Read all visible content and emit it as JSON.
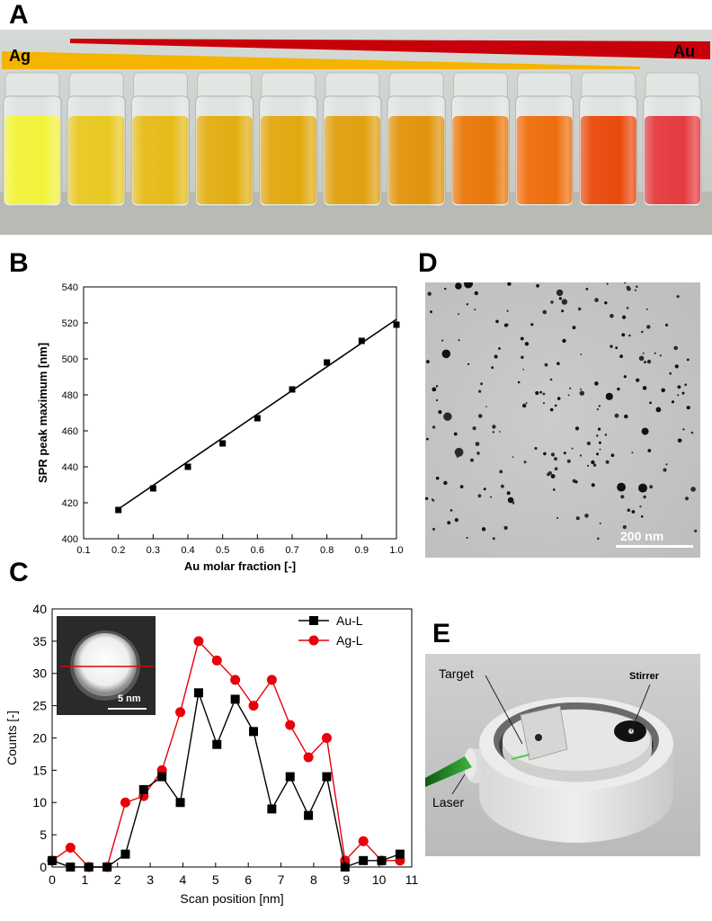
{
  "panels": {
    "a": {
      "letter": "A",
      "label_ag": "Ag",
      "label_au": "Au",
      "vial_count": 11,
      "vial_colors": [
        "#f2f23a",
        "#e9c820",
        "#e6bb18",
        "#e2ae12",
        "#e2a80f",
        "#e0a010",
        "#e1940c",
        "#e9780a",
        "#ee6e0e",
        "#ea4a0c",
        "#e43a3e"
      ]
    },
    "b": {
      "letter": "B"
    },
    "c": {
      "letter": "C",
      "inset_scale": "5 nm"
    },
    "d": {
      "letter": "D",
      "scale_bar": "200 nm"
    },
    "e": {
      "letter": "E",
      "labels": {
        "target": "Target",
        "stirrer": "Stirrer",
        "laser": "Laser"
      }
    }
  },
  "chart_data": [
    {
      "type": "line",
      "panel": "B",
      "xlabel": "Au molar fraction [-]",
      "ylabel": "SPR peak maximum [nm]",
      "xlim": [
        0.1,
        1.0
      ],
      "ylim": [
        400,
        540
      ],
      "xticks": [
        "0.1",
        "0.2",
        "0.3",
        "0.4",
        "0.5",
        "0.6",
        "0.7",
        "0.8",
        "0.9",
        "1.0"
      ],
      "yticks": [
        "400",
        "420",
        "440",
        "460",
        "480",
        "500",
        "520",
        "540"
      ],
      "x": [
        0.2,
        0.3,
        0.4,
        0.5,
        0.6,
        0.7,
        0.8,
        0.9,
        1.0
      ],
      "y": [
        416,
        428,
        440,
        453,
        467,
        483,
        498,
        510,
        519
      ],
      "fit": {
        "x": [
          0.2,
          1.0
        ],
        "y": [
          416.5,
          522
        ]
      },
      "grid": false
    },
    {
      "type": "line",
      "panel": "C",
      "xlabel": "Scan position [nm]",
      "ylabel": "Counts [-]",
      "xlim": [
        0,
        11
      ],
      "ylim": [
        0,
        40
      ],
      "xticks": [
        "0",
        "1",
        "2",
        "3",
        "4",
        "5",
        "6",
        "7",
        "8",
        "9",
        "10",
        "11"
      ],
      "yticks": [
        "0",
        "5",
        "10",
        "15",
        "20",
        "25",
        "30",
        "35",
        "40"
      ],
      "legend_position": "top-right",
      "grid": false,
      "series": [
        {
          "name": "Au-L",
          "color": "#000000",
          "marker": "square",
          "x": [
            0,
            0.56,
            1.12,
            1.68,
            2.24,
            2.8,
            3.36,
            3.92,
            4.48,
            5.04,
            5.6,
            6.16,
            6.72,
            7.28,
            7.84,
            8.4,
            8.96,
            9.52,
            10.08,
            10.64
          ],
          "y": [
            1,
            0,
            0,
            0,
            2,
            12,
            14,
            10,
            27,
            19,
            26,
            21,
            9,
            14,
            8,
            14,
            0,
            1,
            1,
            2
          ]
        },
        {
          "name": "Ag-L",
          "color": "#e8000b",
          "marker": "circle",
          "x": [
            0,
            0.56,
            1.12,
            1.68,
            2.24,
            2.8,
            3.36,
            3.92,
            4.48,
            5.04,
            5.6,
            6.16,
            6.72,
            7.28,
            7.84,
            8.4,
            8.96,
            9.52,
            10.08,
            10.64
          ],
          "y": [
            1,
            3,
            0,
            0,
            10,
            11,
            15,
            24,
            35,
            32,
            29,
            25,
            29,
            22,
            17,
            20,
            1,
            4,
            1,
            1
          ]
        }
      ]
    }
  ]
}
